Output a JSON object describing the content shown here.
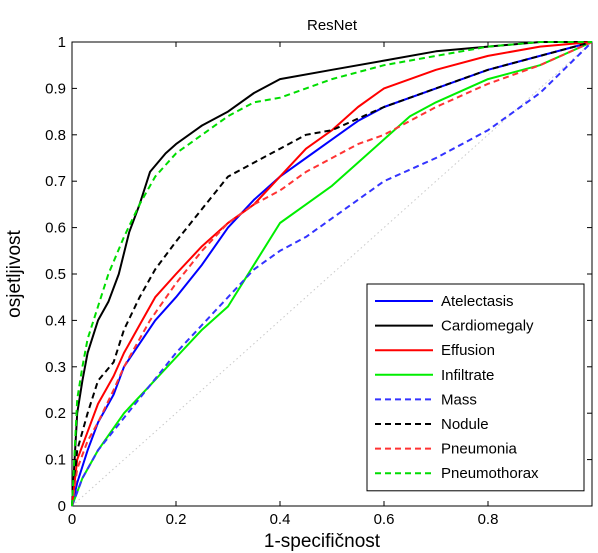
{
  "chart_data": {
    "type": "line",
    "title": "ResNet",
    "xlabel": "1-specifičnost",
    "ylabel": "osjetljivost",
    "xlim": [
      0,
      1
    ],
    "ylim": [
      0,
      1
    ],
    "xticks": [
      0,
      0.2,
      0.4,
      0.6,
      0.8
    ],
    "xtick_labels": [
      "0",
      "0.2",
      "0.4",
      "0.6",
      "0.8"
    ],
    "yticks": [
      0,
      0.1,
      0.2,
      0.3,
      0.4,
      0.5,
      0.6,
      0.7,
      0.8,
      0.9,
      1
    ],
    "ytick_labels": [
      "0",
      "0.1",
      "0.2",
      "0.3",
      "0.4",
      "0.5",
      "0.6",
      "0.7",
      "0.8",
      "0.9",
      "1"
    ],
    "grid": false,
    "legend_position": "bottom-right",
    "diagonal_reference": {
      "x": [
        0,
        1
      ],
      "y": [
        0,
        1
      ],
      "color": "#c8c8c8",
      "style": "dotted"
    },
    "series": [
      {
        "name": "Atelectasis",
        "color": "#0000ff",
        "style": "solid",
        "x": [
          0,
          0.01,
          0.03,
          0.05,
          0.08,
          0.1,
          0.13,
          0.16,
          0.2,
          0.25,
          0.3,
          0.35,
          0.4,
          0.45,
          0.5,
          0.55,
          0.6,
          0.7,
          0.8,
          0.9,
          1.0
        ],
        "y": [
          0,
          0.05,
          0.12,
          0.18,
          0.24,
          0.3,
          0.35,
          0.4,
          0.45,
          0.52,
          0.6,
          0.66,
          0.71,
          0.75,
          0.79,
          0.83,
          0.86,
          0.9,
          0.94,
          0.97,
          1.0
        ]
      },
      {
        "name": "Cardiomegaly",
        "color": "#000000",
        "style": "solid",
        "x": [
          0,
          0.01,
          0.02,
          0.03,
          0.05,
          0.07,
          0.09,
          0.11,
          0.13,
          0.15,
          0.18,
          0.2,
          0.25,
          0.3,
          0.35,
          0.4,
          0.5,
          0.6,
          0.7,
          0.8,
          0.9,
          1.0
        ],
        "y": [
          0,
          0.2,
          0.27,
          0.33,
          0.4,
          0.44,
          0.5,
          0.59,
          0.65,
          0.72,
          0.76,
          0.78,
          0.82,
          0.85,
          0.89,
          0.92,
          0.94,
          0.96,
          0.98,
          0.99,
          1.0,
          1.0
        ]
      },
      {
        "name": "Effusion",
        "color": "#ff0000",
        "style": "solid",
        "x": [
          0,
          0.01,
          0.03,
          0.05,
          0.08,
          0.1,
          0.13,
          0.16,
          0.2,
          0.25,
          0.3,
          0.35,
          0.4,
          0.45,
          0.5,
          0.55,
          0.6,
          0.7,
          0.8,
          0.9,
          1.0
        ],
        "y": [
          0,
          0.1,
          0.16,
          0.22,
          0.28,
          0.33,
          0.39,
          0.45,
          0.5,
          0.56,
          0.61,
          0.65,
          0.71,
          0.77,
          0.81,
          0.86,
          0.9,
          0.94,
          0.97,
          0.99,
          1.0
        ]
      },
      {
        "name": "Infiltrate",
        "color": "#00ee00",
        "style": "solid",
        "x": [
          0,
          0.02,
          0.05,
          0.1,
          0.15,
          0.2,
          0.25,
          0.3,
          0.35,
          0.4,
          0.45,
          0.5,
          0.55,
          0.6,
          0.65,
          0.7,
          0.8,
          0.9,
          1.0
        ],
        "y": [
          0,
          0.06,
          0.12,
          0.2,
          0.26,
          0.32,
          0.38,
          0.43,
          0.52,
          0.61,
          0.65,
          0.69,
          0.74,
          0.79,
          0.84,
          0.87,
          0.92,
          0.95,
          1.0
        ]
      },
      {
        "name": "Mass",
        "color": "#3333ff",
        "style": "dashed",
        "x": [
          0,
          0.02,
          0.05,
          0.1,
          0.15,
          0.2,
          0.25,
          0.3,
          0.35,
          0.4,
          0.45,
          0.5,
          0.55,
          0.6,
          0.7,
          0.8,
          0.9,
          1.0
        ],
        "y": [
          0,
          0.06,
          0.12,
          0.19,
          0.26,
          0.33,
          0.39,
          0.45,
          0.51,
          0.55,
          0.58,
          0.62,
          0.66,
          0.7,
          0.75,
          0.81,
          0.89,
          1.0
        ]
      },
      {
        "name": "Nodule",
        "color": "#000000",
        "style": "dashed",
        "x": [
          0,
          0.01,
          0.03,
          0.05,
          0.08,
          0.1,
          0.13,
          0.16,
          0.2,
          0.25,
          0.3,
          0.35,
          0.4,
          0.45,
          0.5,
          0.6,
          0.7,
          0.8,
          0.9,
          1.0
        ],
        "y": [
          0,
          0.12,
          0.2,
          0.27,
          0.31,
          0.38,
          0.45,
          0.51,
          0.57,
          0.64,
          0.71,
          0.74,
          0.77,
          0.8,
          0.81,
          0.86,
          0.9,
          0.94,
          0.97,
          1.0
        ]
      },
      {
        "name": "Pneumonia",
        "color": "#ff3333",
        "style": "dashed",
        "x": [
          0,
          0.01,
          0.03,
          0.05,
          0.08,
          0.1,
          0.15,
          0.2,
          0.25,
          0.3,
          0.35,
          0.4,
          0.45,
          0.5,
          0.55,
          0.6,
          0.7,
          0.8,
          0.9,
          1.0
        ],
        "y": [
          0,
          0.08,
          0.14,
          0.18,
          0.25,
          0.3,
          0.4,
          0.48,
          0.55,
          0.61,
          0.65,
          0.68,
          0.72,
          0.75,
          0.78,
          0.8,
          0.86,
          0.91,
          0.95,
          1.0
        ]
      },
      {
        "name": "Pneumothorax",
        "color": "#00dd00",
        "style": "dashed",
        "x": [
          0,
          0.01,
          0.02,
          0.03,
          0.05,
          0.07,
          0.1,
          0.13,
          0.16,
          0.2,
          0.25,
          0.3,
          0.35,
          0.4,
          0.45,
          0.5,
          0.6,
          0.7,
          0.8,
          0.9,
          1.0
        ],
        "y": [
          0,
          0.23,
          0.3,
          0.36,
          0.43,
          0.5,
          0.58,
          0.65,
          0.71,
          0.76,
          0.8,
          0.84,
          0.87,
          0.88,
          0.9,
          0.92,
          0.95,
          0.97,
          0.99,
          1.0,
          1.0
        ]
      }
    ]
  }
}
